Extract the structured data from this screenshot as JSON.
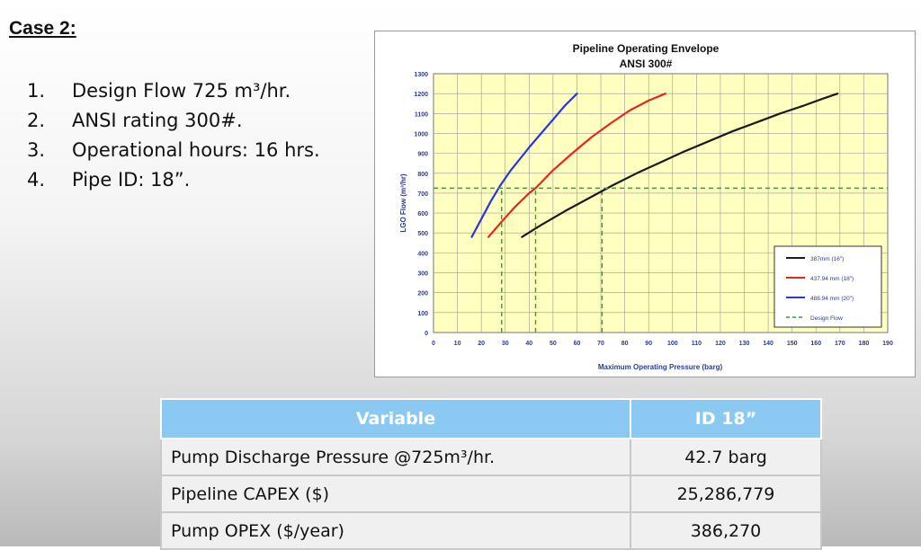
{
  "slide": {
    "case_title": "Case 2:",
    "specs": [
      {
        "num": "1.",
        "text": "Design Flow 725 m³/hr."
      },
      {
        "num": "2.",
        "text": "ANSI rating 300#."
      },
      {
        "num": "3.",
        "text": "Operational hours: 16 hrs."
      },
      {
        "num": "4.",
        "text": "Pipe ID: 18”."
      }
    ]
  },
  "chart_data": {
    "type": "line",
    "title": "Pipeline Operating Envelope",
    "subtitle": "ANSI 300#",
    "xlabel": "Maximum Operating Pressure (barg)",
    "ylabel": "LGO Flow (m³/hr)",
    "xlim": [
      0,
      190
    ],
    "ylim": [
      0,
      1300
    ],
    "xticks": [
      "0",
      "10",
      "20",
      "30",
      "40",
      "50",
      "60",
      "70",
      "80",
      "90",
      "100",
      "110",
      "120",
      "130",
      "140",
      "150",
      "160",
      "170",
      "180",
      "190"
    ],
    "yticks": [
      "0",
      "100",
      "200",
      "300",
      "400",
      "500",
      "600",
      "700",
      "800",
      "900",
      "1000",
      "1100",
      "1200",
      "1300"
    ],
    "grid": true,
    "legend_position": "bottom-right",
    "series": [
      {
        "name": "387mm (16\")",
        "color": "#1a1a1a",
        "style": "solid",
        "x": [
          37,
          45,
          55,
          65,
          75,
          85,
          95,
          105,
          115,
          125,
          135,
          145,
          155,
          163,
          169
        ],
        "y": [
          480,
          540,
          610,
          675,
          740,
          800,
          855,
          910,
          960,
          1010,
          1055,
          1100,
          1140,
          1175,
          1200
        ]
      },
      {
        "name": "437.94 mm (18\")",
        "color": "#e8251f",
        "style": "solid",
        "x": [
          23,
          28,
          34,
          40,
          42.7,
          50,
          58,
          66,
          74,
          82,
          90,
          97
        ],
        "y": [
          480,
          550,
          630,
          700,
          725,
          815,
          900,
          980,
          1050,
          1115,
          1165,
          1200
        ]
      },
      {
        "name": "488.94 mm (20\")",
        "color": "#2b35e8",
        "style": "solid",
        "x": [
          16,
          20,
          24,
          28,
          32,
          36,
          40,
          45,
          50,
          55,
          60
        ],
        "y": [
          480,
          570,
          660,
          740,
          810,
          870,
          930,
          1000,
          1070,
          1140,
          1200
        ]
      },
      {
        "name": "Design Flow",
        "color": "#22aa33",
        "style": "dashed",
        "x": [
          0,
          190
        ],
        "y": [
          725,
          725
        ]
      }
    ],
    "design_markers_x": [
      28.5,
      42.7,
      70.5
    ]
  },
  "table": {
    "headers": [
      "Variable",
      "ID 18”"
    ],
    "rows": [
      {
        "variable": "Pump Discharge Pressure @725m³/hr.",
        "value": "42.7 barg"
      },
      {
        "variable": "Pipeline CAPEX ($)",
        "value": "25,286,779"
      },
      {
        "variable": "Pump OPEX ($/year)",
        "value": "386,270"
      }
    ]
  }
}
